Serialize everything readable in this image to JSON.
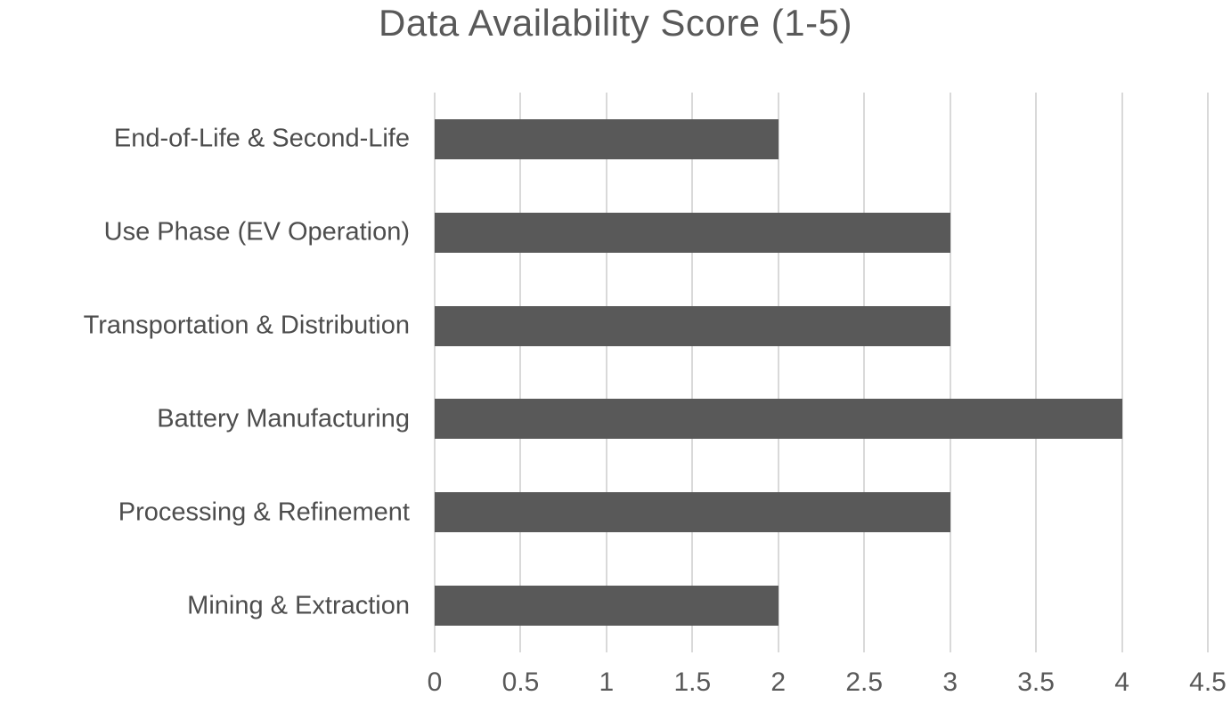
{
  "chart_data": {
    "type": "bar",
    "orientation": "horizontal",
    "title": "Data Availability Score (1-5)",
    "categories": [
      "End-of-Life & Second-Life",
      "Use Phase (EV Operation)",
      "Transportation & Distribution",
      "Battery Manufacturing",
      "Processing & Refinement",
      "Mining & Extraction"
    ],
    "values": [
      2,
      3,
      3,
      4,
      3,
      2
    ],
    "xlabel": "",
    "ylabel": "",
    "xlim": [
      0,
      4.5
    ],
    "xticks": [
      0,
      0.5,
      1,
      1.5,
      2,
      2.5,
      3,
      3.5,
      4,
      4.5
    ],
    "xtick_labels": [
      "0",
      "0.5",
      "1",
      "1.5",
      "2",
      "2.5",
      "3",
      "3.5",
      "4",
      "4.5"
    ],
    "grid": "vertical-on",
    "legend": "none",
    "bar_color": "#595959",
    "gridline_color": "#d9d9d9",
    "title_color": "#595959",
    "label_color": "#4d4d4d",
    "tick_color": "#595959"
  }
}
